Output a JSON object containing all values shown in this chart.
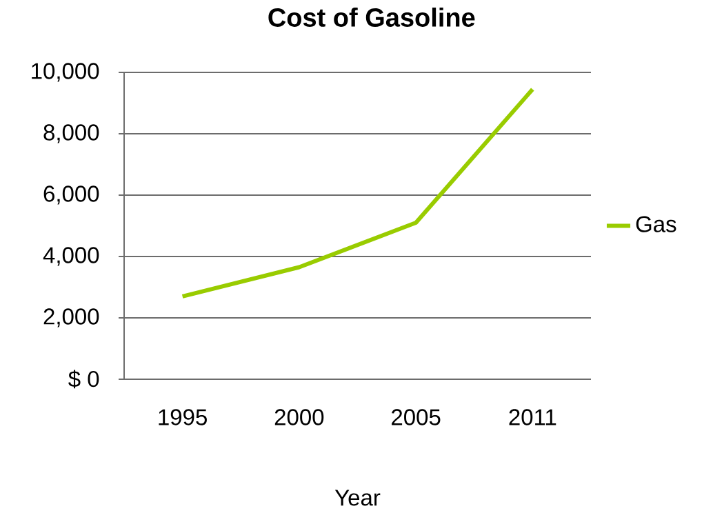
{
  "chart_data": {
    "type": "line",
    "title": "Cost of Gasoline",
    "xlabel": "Year",
    "categories": [
      "1995",
      "2000",
      "2005",
      "2011"
    ],
    "series": [
      {
        "name": "Gas",
        "color": "#99cc00",
        "values": [
          2700,
          3650,
          5100,
          9450
        ]
      }
    ],
    "ylim": [
      0,
      10000
    ],
    "yticks": [
      {
        "value": 0,
        "label": "$ 0"
      },
      {
        "value": 2000,
        "label": "2,000"
      },
      {
        "value": 4000,
        "label": "4,000"
      },
      {
        "value": 6000,
        "label": "6,000"
      },
      {
        "value": 8000,
        "label": "8,000"
      },
      {
        "value": 10000,
        "label": "10,000"
      }
    ],
    "grid": "y",
    "legend": "right",
    "marker": "none",
    "line_style": "solid"
  }
}
